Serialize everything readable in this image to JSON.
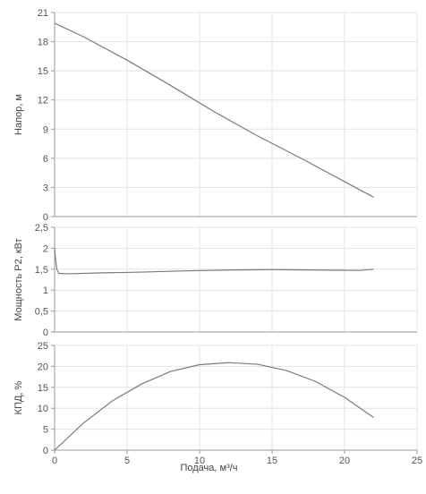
{
  "chart_data": [
    {
      "type": "line",
      "xlabel": "",
      "ylabel": "Напор, м",
      "xlim": [
        0,
        25
      ],
      "ylim": [
        0,
        21
      ],
      "yticks": [
        0,
        3,
        6,
        9,
        12,
        15,
        18,
        21
      ],
      "xticks": [],
      "grid": true,
      "series": [
        {
          "x": [
            0,
            2,
            5,
            8,
            11,
            14,
            17,
            20,
            22
          ],
          "y": [
            19.9,
            18.5,
            16.1,
            13.5,
            10.8,
            8.3,
            6.0,
            3.6,
            2.0
          ]
        }
      ]
    },
    {
      "type": "line",
      "xlabel": "",
      "ylabel": "Мощность P2, кВт",
      "xlim": [
        0,
        25
      ],
      "ylim": [
        0,
        2.5
      ],
      "yticks": [
        0,
        0.5,
        1,
        1.5,
        2,
        2.5
      ],
      "xticks": [],
      "grid": true,
      "series": [
        {
          "x": [
            0,
            0.05,
            0.15,
            0.3,
            1,
            3,
            6,
            9,
            12,
            15,
            18,
            21,
            22
          ],
          "y": [
            2.0,
            1.8,
            1.5,
            1.4,
            1.39,
            1.41,
            1.43,
            1.46,
            1.48,
            1.49,
            1.48,
            1.47,
            1.5
          ]
        }
      ]
    },
    {
      "type": "line",
      "xlabel": "Подача, м³/ч",
      "ylabel": "КПД, %",
      "xlim": [
        0,
        25
      ],
      "ylim": [
        0,
        25
      ],
      "yticks": [
        0,
        5,
        10,
        15,
        20,
        25
      ],
      "xticks": [
        0,
        5,
        10,
        15,
        20,
        25
      ],
      "grid": true,
      "series": [
        {
          "x": [
            0,
            2,
            4,
            6,
            8,
            10,
            12,
            14,
            16,
            18,
            20,
            22
          ],
          "y": [
            0,
            6.5,
            11.8,
            15.8,
            18.8,
            20.4,
            20.9,
            20.5,
            19.0,
            16.4,
            12.6,
            7.8
          ]
        }
      ]
    }
  ]
}
